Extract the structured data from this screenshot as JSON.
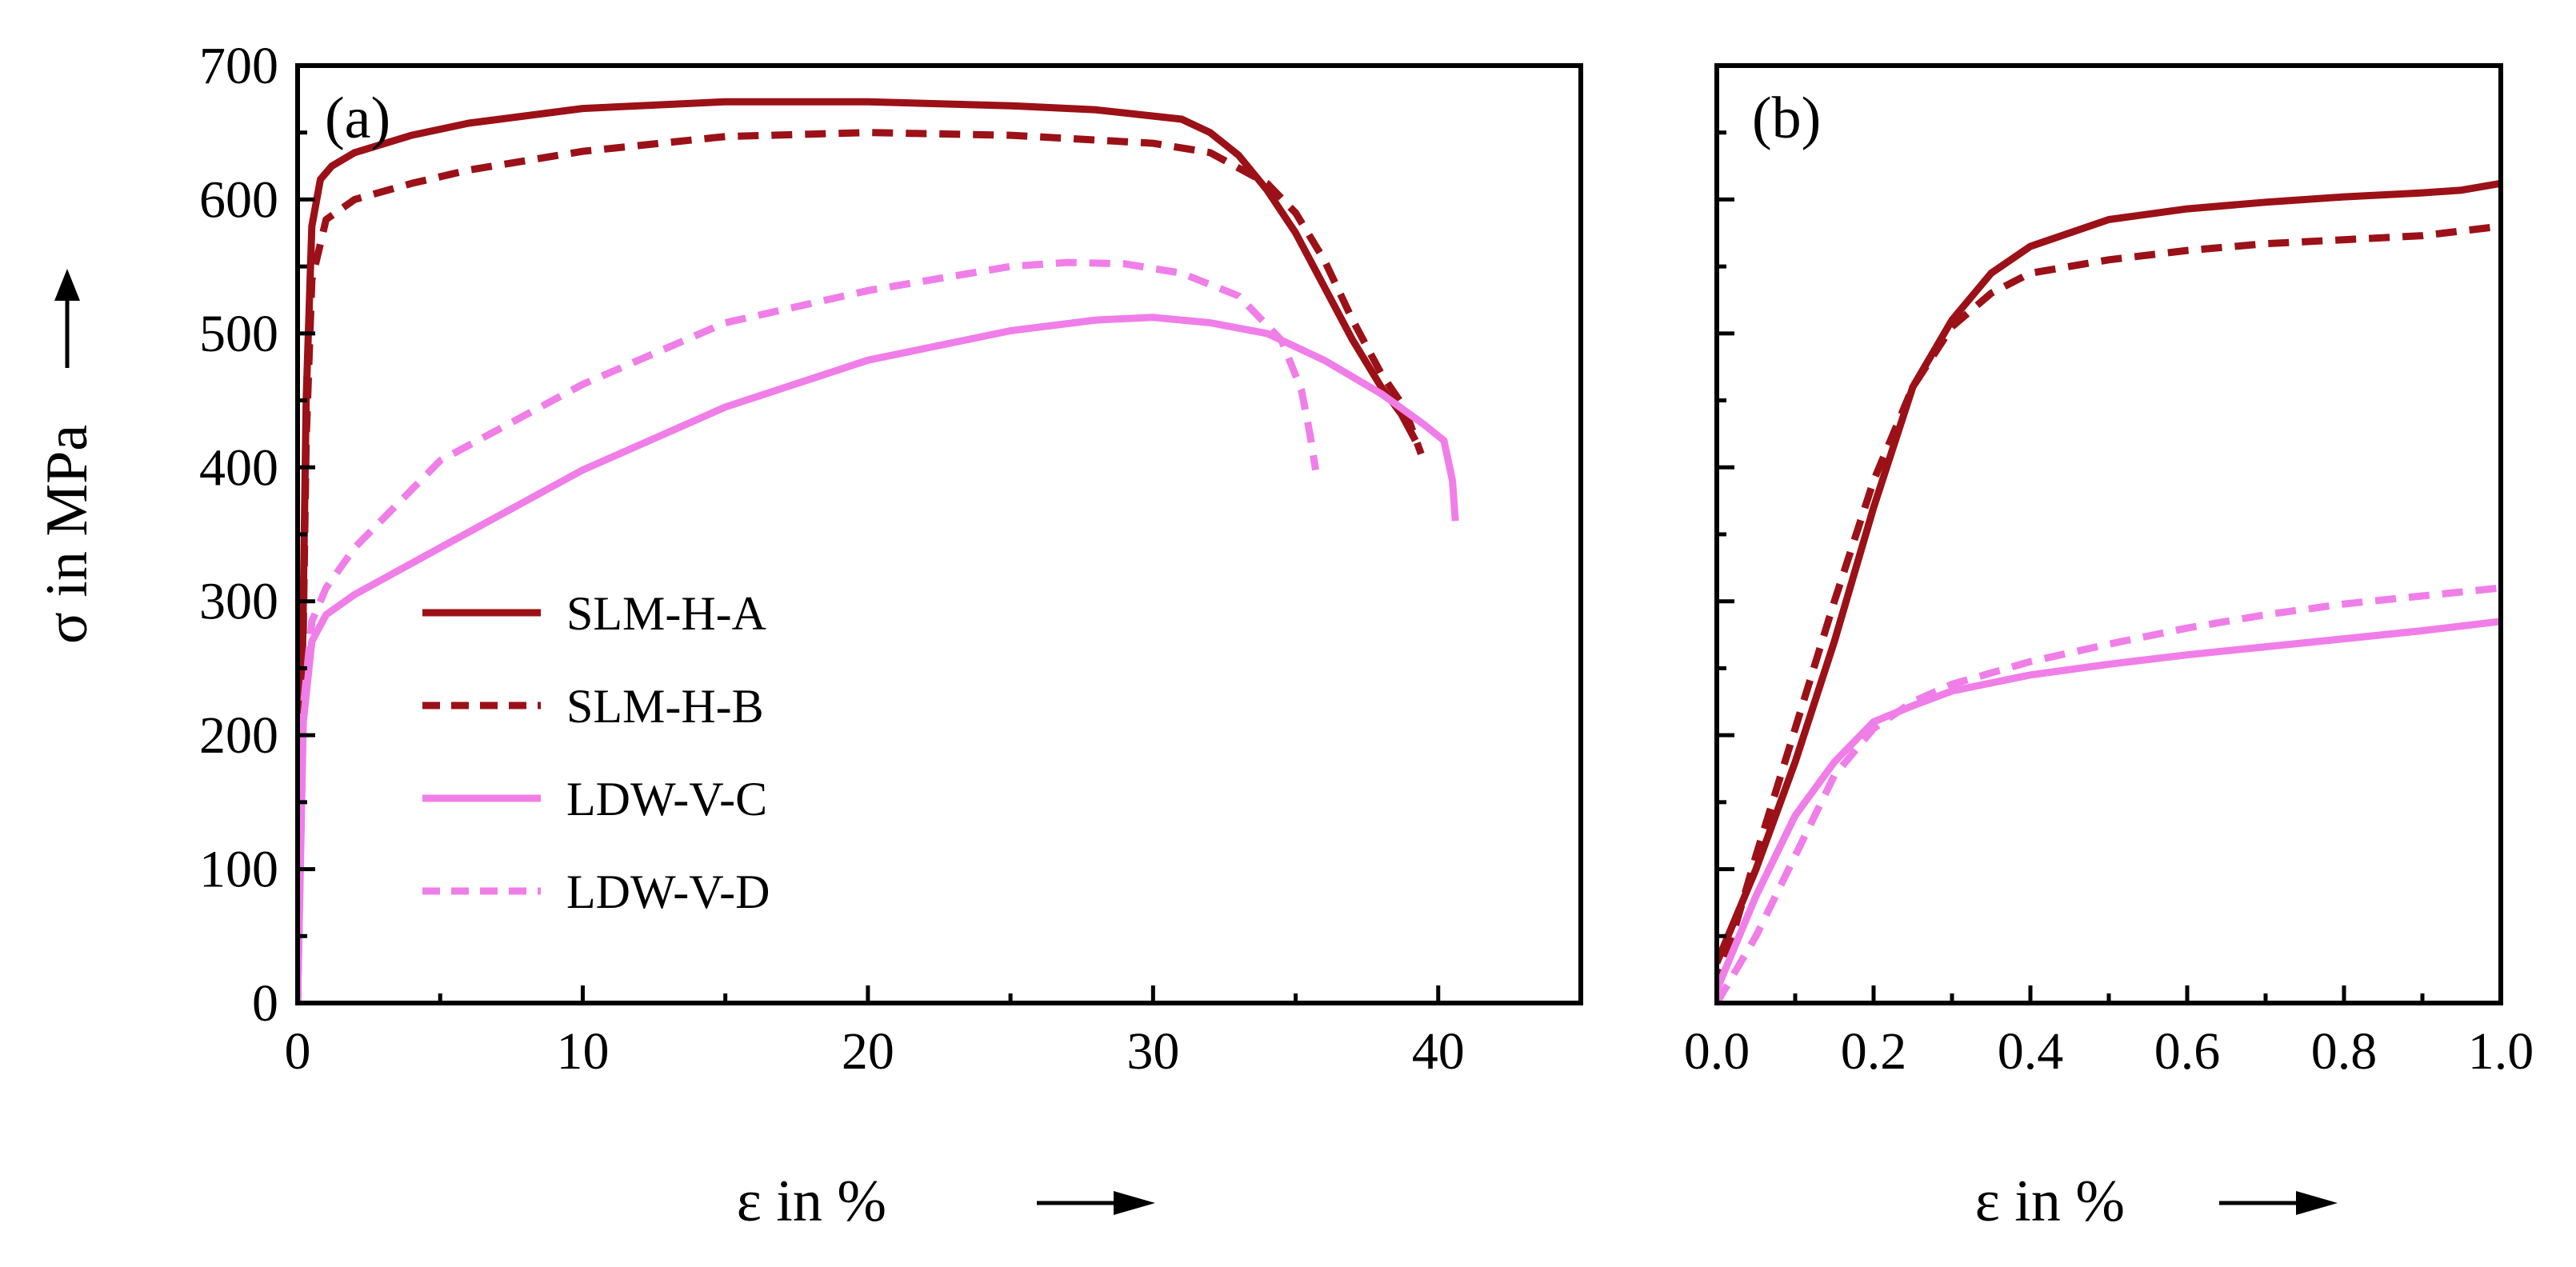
{
  "chart_data": [
    {
      "panel_label": "(a)",
      "type": "line",
      "xlabel": "ε in %",
      "ylabel": "σ in MPa",
      "xlim": [
        0,
        45
      ],
      "ylim": [
        0,
        700
      ],
      "x_ticks": [
        "0",
        "10",
        "20",
        "30",
        "40"
      ],
      "y_ticks": [
        "0",
        "100",
        "200",
        "300",
        "400",
        "500",
        "600",
        "700"
      ],
      "grid": false,
      "legend": "lower-left",
      "series": [
        {
          "name": "SLM-H-A",
          "color": "#9b1117",
          "style": "solid",
          "x": [
            0,
            0.3,
            0.5,
            0.8,
            1.2,
            2,
            4,
            6,
            10,
            15,
            20,
            25,
            28,
            31,
            32,
            33,
            34,
            35,
            36,
            37,
            38,
            38.7,
            39.2
          ],
          "y": [
            0,
            450,
            580,
            615,
            625,
            635,
            648,
            657,
            668,
            673,
            673,
            670,
            667,
            660,
            650,
            633,
            607,
            575,
            535,
            495,
            460,
            440,
            420
          ]
        },
        {
          "name": "SLM-H-B",
          "color": "#9b1117",
          "style": "dashed",
          "x": [
            0,
            0.3,
            0.5,
            1,
            2,
            4,
            6,
            10,
            15,
            20,
            25,
            30,
            32,
            34,
            35,
            36,
            37,
            38,
            38.8,
            39.4
          ],
          "y": [
            0,
            420,
            540,
            585,
            600,
            612,
            622,
            636,
            647,
            650,
            648,
            642,
            635,
            612,
            590,
            555,
            510,
            470,
            445,
            410
          ]
        },
        {
          "name": "LDW-V-C",
          "color": "#f07ee8",
          "style": "solid",
          "x": [
            0,
            0.2,
            0.5,
            1,
            2,
            5,
            10,
            15,
            20,
            25,
            28,
            30,
            32,
            34,
            36,
            38,
            39.5,
            40.2,
            40.5,
            40.6
          ],
          "y": [
            0,
            210,
            270,
            290,
            305,
            340,
            398,
            445,
            480,
            502,
            510,
            512,
            508,
            500,
            480,
            455,
            432,
            420,
            390,
            360
          ]
        },
        {
          "name": "LDW-V-D",
          "color": "#f07ee8",
          "style": "dashed",
          "x": [
            0,
            0.2,
            0.5,
            1,
            2,
            5,
            10,
            15,
            20,
            25,
            27,
            29,
            31,
            33,
            34.5,
            35.2,
            35.5,
            35.7
          ],
          "y": [
            0,
            220,
            285,
            310,
            340,
            405,
            462,
            508,
            532,
            550,
            553,
            552,
            545,
            528,
            495,
            458,
            425,
            398
          ]
        }
      ]
    },
    {
      "panel_label": "(b)",
      "type": "line",
      "xlabel": "ε in %",
      "ylabel": "",
      "xlim": [
        0,
        1
      ],
      "ylim": [
        0,
        700
      ],
      "x_ticks": [
        "0.0",
        "0.2",
        "0.4",
        "0.6",
        "0.8",
        "1.0"
      ],
      "y_ticks": [],
      "grid": false,
      "series": [
        {
          "name": "SLM-H-A",
          "color": "#9b1117",
          "style": "solid",
          "x": [
            0,
            0.05,
            0.1,
            0.15,
            0.2,
            0.25,
            0.3,
            0.35,
            0.4,
            0.5,
            0.6,
            0.7,
            0.8,
            0.9,
            0.95,
            1.0
          ],
          "y": [
            30,
            100,
            180,
            270,
            370,
            460,
            510,
            545,
            565,
            585,
            593,
            598,
            602,
            605,
            607,
            612
          ]
        },
        {
          "name": "SLM-H-B",
          "color": "#9b1117",
          "style": "dashed",
          "x": [
            0,
            0.05,
            0.1,
            0.15,
            0.2,
            0.25,
            0.3,
            0.35,
            0.4,
            0.5,
            0.6,
            0.7,
            0.8,
            0.9,
            1.0
          ],
          "y": [
            10,
            110,
            205,
            300,
            390,
            460,
            505,
            530,
            545,
            555,
            562,
            567,
            570,
            573,
            580
          ]
        },
        {
          "name": "LDW-V-C",
          "color": "#f07ee8",
          "style": "solid",
          "x": [
            0,
            0.05,
            0.1,
            0.15,
            0.2,
            0.25,
            0.3,
            0.4,
            0.5,
            0.6,
            0.7,
            0.8,
            0.9,
            1.0
          ],
          "y": [
            10,
            80,
            140,
            180,
            210,
            222,
            233,
            245,
            253,
            260,
            266,
            272,
            278,
            285
          ]
        },
        {
          "name": "LDW-V-D",
          "color": "#f07ee8",
          "style": "dashed",
          "x": [
            0,
            0.05,
            0.1,
            0.15,
            0.2,
            0.25,
            0.3,
            0.4,
            0.5,
            0.6,
            0.7,
            0.8,
            0.9,
            1.0
          ],
          "y": [
            0,
            50,
            110,
            170,
            205,
            225,
            238,
            255,
            268,
            280,
            290,
            298,
            304,
            310
          ]
        }
      ]
    }
  ]
}
